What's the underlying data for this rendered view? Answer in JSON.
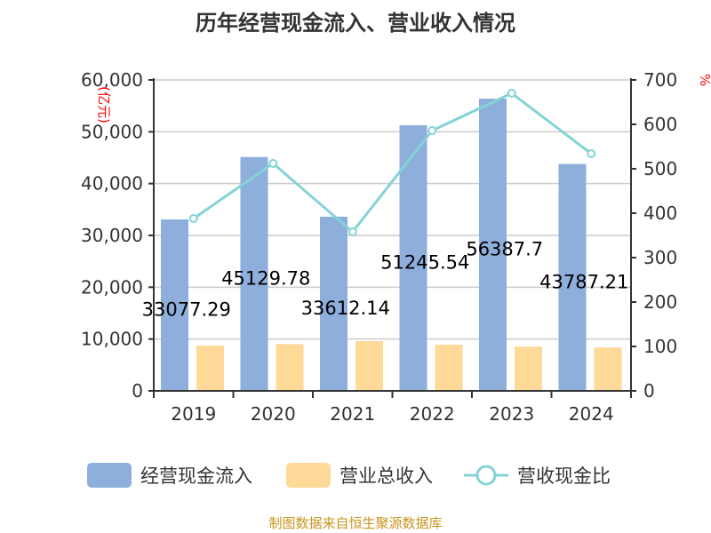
{
  "chart_data": {
    "type": "bar",
    "title": "历年经营现金流入、营业收入情况",
    "source": "制图数据来自恒生聚源数据库",
    "categories": [
      "2019",
      "2020",
      "2021",
      "2022",
      "2023",
      "2024"
    ],
    "ylabel_left": "亿元",
    "ylabel_right": "%",
    "ylim_left": [
      0,
      60000
    ],
    "ylim_right": [
      0,
      700
    ],
    "yticks_left": [
      "0",
      "10,000",
      "20,000",
      "30,000",
      "40,000",
      "50,000",
      "60,000"
    ],
    "yticks_right": [
      "0",
      "100",
      "200",
      "300",
      "400",
      "500",
      "600",
      "700"
    ],
    "grid": true,
    "legend_position": "bottom",
    "series": [
      {
        "name": "经营现金流入",
        "type": "bar",
        "axis": "left",
        "color": "#8eaedb",
        "values": [
          33077.29,
          45129.78,
          33612.14,
          51245.54,
          56387.7,
          43787.21
        ],
        "labels": [
          "33077.29",
          "45129.78",
          "33612.14",
          "51245.54",
          "56387.7",
          "43787.21"
        ]
      },
      {
        "name": "营业总收入",
        "type": "bar",
        "axis": "left",
        "color": "#fed998",
        "values": [
          8726,
          9020,
          9600,
          8900,
          8550,
          8380
        ]
      },
      {
        "name": "营收现金比",
        "type": "line",
        "axis": "right",
        "color": "#84d3d6",
        "values": [
          388,
          512,
          358,
          586,
          670,
          534
        ]
      }
    ]
  }
}
